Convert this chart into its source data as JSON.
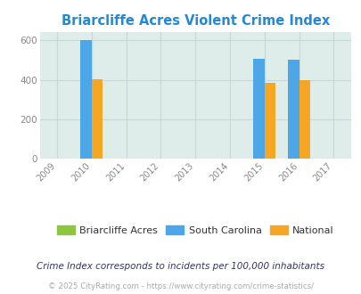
{
  "title": "Briarcliffe Acres Violent Crime Index",
  "title_color": "#2688d4",
  "years": [
    2009,
    2010,
    2011,
    2012,
    2013,
    2014,
    2015,
    2016,
    2017
  ],
  "bar_width": 0.32,
  "sc_data": {
    "2010": 600,
    "2015": 507,
    "2016": 503
  },
  "national_data": {
    "2010": 404,
    "2015": 383,
    "2016": 397
  },
  "briarcliffe_data": {},
  "briarcliffe_color": "#8dc63f",
  "sc_color": "#4da6e8",
  "national_color": "#f5a623",
  "bg_color": "#deecea",
  "ylim": [
    0,
    640
  ],
  "yticks": [
    0,
    200,
    400,
    600
  ],
  "grid_color": "#c8d8d6",
  "footnote1": "Crime Index corresponds to incidents per 100,000 inhabitants",
  "footnote2": "© 2025 CityRating.com - https://www.cityrating.com/crime-statistics/",
  "footnote2_color": "#aaaaaa",
  "footnote1_color": "#333366",
  "legend_labels": [
    "Briarcliffe Acres",
    "South Carolina",
    "National"
  ]
}
